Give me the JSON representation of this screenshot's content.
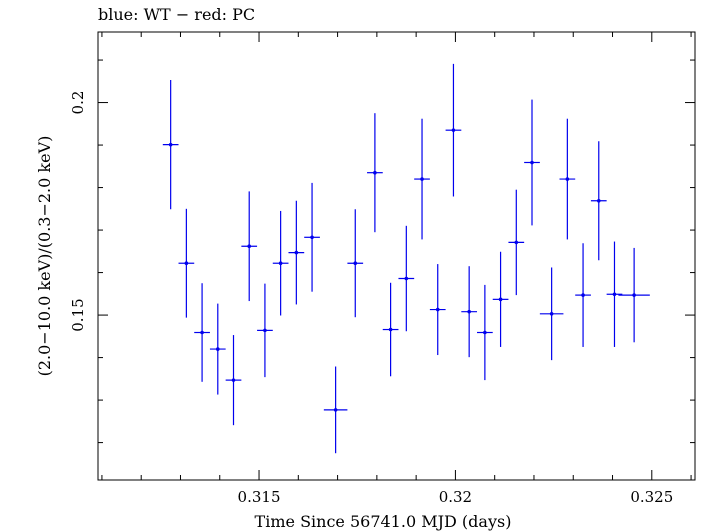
{
  "chart_data": {
    "type": "scatter",
    "title": "blue: WT − red: PC",
    "xlabel": "Time Since 56741.0 MJD (days)",
    "ylabel": "(2.0−10.0 keV)/(0.3−2.0 keV)",
    "xlim": [
      0.3109,
      0.3261
    ],
    "ylim": [
      0.1112,
      0.2166
    ],
    "x_ticks": [
      0.315,
      0.32,
      0.325
    ],
    "x_tick_labels": [
      "0.315",
      "0.32",
      "0.325"
    ],
    "y_ticks": [
      0.15,
      0.2
    ],
    "y_tick_labels": [
      "0.15",
      "0.2"
    ],
    "grid": false,
    "series": [
      {
        "color": "#0000ee",
        "points": [
          {
            "x": 0.31275,
            "y": 0.1901,
            "xerr": 0.0002,
            "yerr": 0.0152
          },
          {
            "x": 0.31315,
            "y": 0.1622,
            "xerr": 0.0002,
            "yerr": 0.0128
          },
          {
            "x": 0.31355,
            "y": 0.1459,
            "xerr": 0.0002,
            "yerr": 0.0116
          },
          {
            "x": 0.31395,
            "y": 0.142,
            "xerr": 0.0002,
            "yerr": 0.0107
          },
          {
            "x": 0.31435,
            "y": 0.1347,
            "xerr": 0.0002,
            "yerr": 0.0106
          },
          {
            "x": 0.31475,
            "y": 0.1662,
            "xerr": 0.0002,
            "yerr": 0.0129
          },
          {
            "x": 0.31515,
            "y": 0.1464,
            "xerr": 0.0002,
            "yerr": 0.011
          },
          {
            "x": 0.31555,
            "y": 0.1622,
            "xerr": 0.0002,
            "yerr": 0.0123
          },
          {
            "x": 0.31595,
            "y": 0.1647,
            "xerr": 0.0002,
            "yerr": 0.0122
          },
          {
            "x": 0.31635,
            "y": 0.1683,
            "xerr": 0.0002,
            "yerr": 0.0128
          },
          {
            "x": 0.31695,
            "y": 0.1277,
            "xerr": 0.0003,
            "yerr": 0.0102
          },
          {
            "x": 0.31745,
            "y": 0.1622,
            "xerr": 0.0002,
            "yerr": 0.0127
          },
          {
            "x": 0.31795,
            "y": 0.1835,
            "xerr": 0.0002,
            "yerr": 0.014
          },
          {
            "x": 0.31835,
            "y": 0.1466,
            "xerr": 0.0002,
            "yerr": 0.011
          },
          {
            "x": 0.31875,
            "y": 0.1586,
            "xerr": 0.0002,
            "yerr": 0.0124
          },
          {
            "x": 0.31915,
            "y": 0.182,
            "xerr": 0.0002,
            "yerr": 0.0142
          },
          {
            "x": 0.31955,
            "y": 0.1513,
            "xerr": 0.0002,
            "yerr": 0.0107
          },
          {
            "x": 0.31995,
            "y": 0.1935,
            "xerr": 0.0002,
            "yerr": 0.0156
          },
          {
            "x": 0.32035,
            "y": 0.1508,
            "xerr": 0.0002,
            "yerr": 0.0107
          },
          {
            "x": 0.32075,
            "y": 0.1459,
            "xerr": 0.0002,
            "yerr": 0.0112
          },
          {
            "x": 0.32115,
            "y": 0.1537,
            "xerr": 0.0002,
            "yerr": 0.0112
          },
          {
            "x": 0.32155,
            "y": 0.1671,
            "xerr": 0.0002,
            "yerr": 0.0124
          },
          {
            "x": 0.32195,
            "y": 0.1859,
            "xerr": 0.0002,
            "yerr": 0.0148
          },
          {
            "x": 0.32245,
            "y": 0.1503,
            "xerr": 0.0003,
            "yerr": 0.0109
          },
          {
            "x": 0.32285,
            "y": 0.182,
            "xerr": 0.0002,
            "yerr": 0.0142
          },
          {
            "x": 0.32325,
            "y": 0.1547,
            "xerr": 0.0002,
            "yerr": 0.0122
          },
          {
            "x": 0.32365,
            "y": 0.1769,
            "xerr": 0.0002,
            "yerr": 0.014
          },
          {
            "x": 0.32405,
            "y": 0.1549,
            "xerr": 0.0002,
            "yerr": 0.0124
          },
          {
            "x": 0.32455,
            "y": 0.1547,
            "xerr": 0.0004,
            "yerr": 0.0111
          }
        ]
      }
    ]
  }
}
